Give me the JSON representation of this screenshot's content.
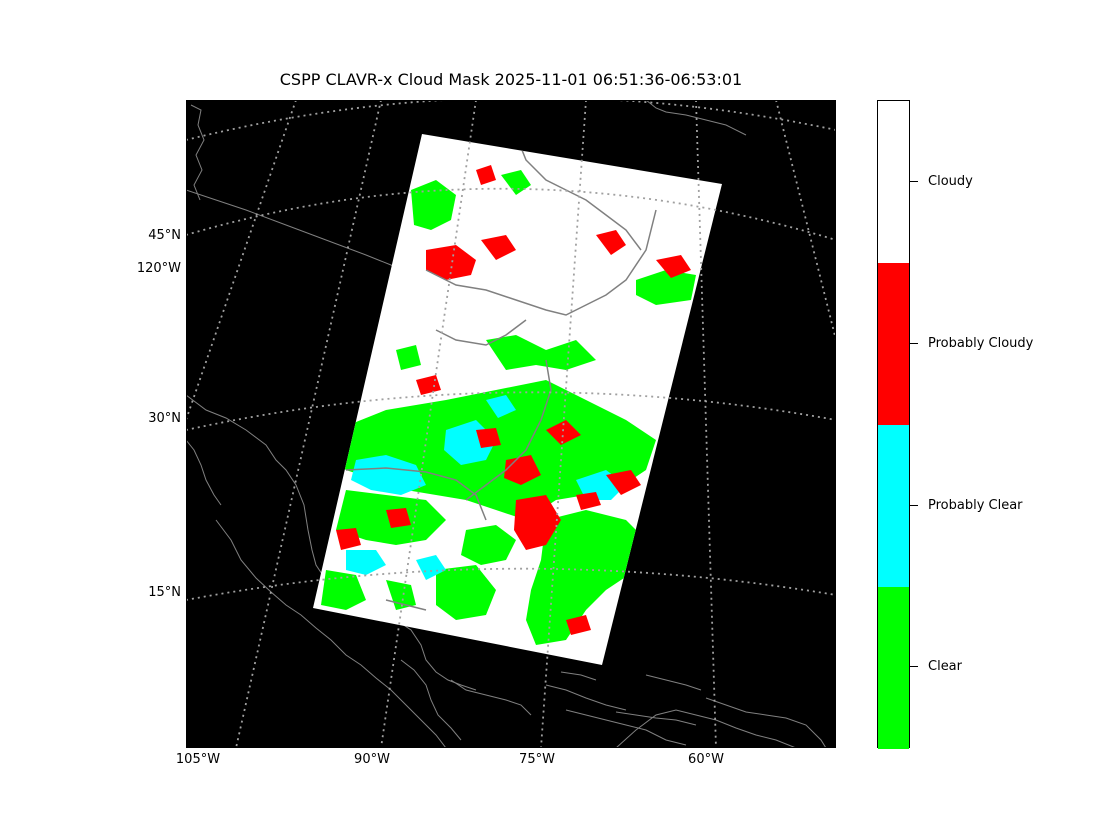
{
  "title": "CSPP CLAVR-x Cloud Mask 2025-11-01 06:51:36-06:53:01",
  "map": {
    "background_color": "#000000",
    "coastline_color": "#808080",
    "gridline_style": "dotted",
    "lat_labels": [
      "45°N",
      "30°N",
      "15°N"
    ],
    "lon_labels_left": [
      "120°W"
    ],
    "lon_labels_bottom": [
      "105°W",
      "90°W",
      "75°W",
      "60°W"
    ]
  },
  "colorbar": {
    "classes": [
      {
        "label": "Cloudy",
        "color": "#ffffff"
      },
      {
        "label": "Probably Cloudy",
        "color": "#ff0000"
      },
      {
        "label": "Probably Clear",
        "color": "#00ffff"
      },
      {
        "label": "Clear",
        "color": "#00ff00"
      }
    ]
  }
}
